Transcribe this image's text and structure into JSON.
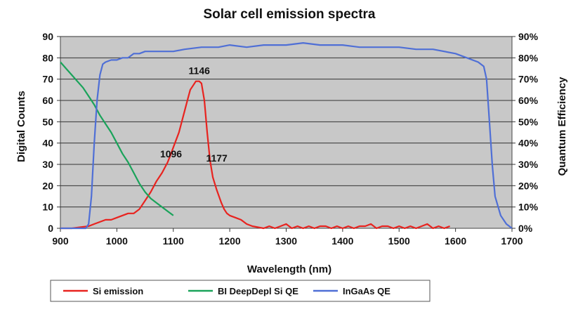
{
  "chart_data": {
    "type": "line",
    "title": "Solar cell emission spectra",
    "xlabel": "Wavelength (nm)",
    "ylabel": "Digital Counts",
    "y2label": "Quantum Efficiency",
    "xlim": [
      900,
      1700
    ],
    "ylim": [
      0,
      90
    ],
    "y2lim": [
      0,
      90
    ],
    "x_ticks": [
      "900",
      "1000",
      "1100",
      "1200",
      "1300",
      "1400",
      "1500",
      "1600",
      "1700"
    ],
    "y_ticks": [
      "0",
      "10",
      "20",
      "30",
      "40",
      "50",
      "60",
      "70",
      "80",
      "90"
    ],
    "y2_ticks": [
      "0%",
      "10%",
      "20%",
      "30%",
      "40%",
      "50%",
      "60%",
      "70%",
      "80%",
      "90%"
    ],
    "grid": "horizontal",
    "legend_position": "bottom",
    "annotations": [
      {
        "text": "1146",
        "x": 1146,
        "y": 74
      },
      {
        "text": "1096",
        "x": 1096,
        "y": 35
      },
      {
        "text": "1177",
        "x": 1177,
        "y": 33
      }
    ],
    "series": [
      {
        "name": "Si emission",
        "color": "#e8231f",
        "x": [
          900,
          920,
          935,
          950,
          960,
          970,
          980,
          990,
          1000,
          1010,
          1020,
          1030,
          1040,
          1050,
          1060,
          1070,
          1080,
          1090,
          1096,
          1100,
          1110,
          1120,
          1125,
          1130,
          1135,
          1140,
          1146,
          1150,
          1155,
          1160,
          1165,
          1170,
          1177,
          1185,
          1190,
          1195,
          1200,
          1210,
          1220,
          1230,
          1240,
          1250,
          1260,
          1270,
          1280,
          1290,
          1300,
          1310,
          1320,
          1330,
          1340,
          1350,
          1360,
          1370,
          1380,
          1390,
          1400,
          1410,
          1420,
          1430,
          1440,
          1450,
          1460,
          1470,
          1480,
          1490,
          1500,
          1510,
          1520,
          1530,
          1540,
          1550,
          1560,
          1570,
          1580,
          1590
        ],
        "values": [
          0,
          0,
          0.5,
          1,
          2,
          3,
          4,
          4,
          5,
          6,
          7,
          7,
          9,
          13,
          17,
          22,
          26,
          31,
          35,
          38,
          45,
          55,
          60,
          65,
          67,
          69,
          69,
          68,
          60,
          45,
          32,
          24,
          18,
          12,
          9,
          7,
          6,
          5,
          4,
          2,
          1,
          0.5,
          0,
          1,
          0,
          1,
          2,
          0,
          1,
          0,
          1,
          0,
          1,
          1,
          0,
          1,
          0,
          1,
          0,
          1,
          1,
          2,
          0,
          1,
          1,
          0,
          1,
          0,
          1,
          0,
          1,
          2,
          0,
          1,
          0,
          1
        ]
      },
      {
        "name": "BI DeepDepl Si QE",
        "color": "#1aa35a",
        "x": [
          900,
          910,
          920,
          930,
          940,
          950,
          960,
          970,
          980,
          990,
          1000,
          1010,
          1020,
          1030,
          1040,
          1050,
          1060,
          1070,
          1080,
          1090,
          1100
        ],
        "values": [
          78,
          75,
          72,
          69,
          66,
          62,
          58,
          53,
          49,
          45,
          40,
          35,
          31,
          26,
          21,
          17,
          14,
          12,
          10,
          8,
          6
        ]
      },
      {
        "name": "InGaAs QE",
        "color": "#4f6fd6",
        "x": [
          900,
          930,
          945,
          950,
          955,
          960,
          965,
          970,
          975,
          980,
          990,
          1000,
          1010,
          1020,
          1030,
          1040,
          1050,
          1060,
          1080,
          1100,
          1120,
          1150,
          1180,
          1200,
          1230,
          1260,
          1300,
          1330,
          1360,
          1400,
          1430,
          1460,
          1500,
          1530,
          1560,
          1600,
          1620,
          1640,
          1650,
          1655,
          1660,
          1665,
          1670,
          1680,
          1690,
          1700
        ],
        "values": [
          0,
          0,
          0,
          2,
          15,
          40,
          60,
          72,
          77,
          78,
          79,
          79,
          80,
          80,
          82,
          82,
          83,
          83,
          83,
          83,
          84,
          85,
          85,
          86,
          85,
          86,
          86,
          87,
          86,
          86,
          85,
          85,
          85,
          84,
          84,
          82,
          80,
          78,
          76,
          70,
          50,
          30,
          15,
          6,
          2,
          0
        ]
      }
    ]
  }
}
